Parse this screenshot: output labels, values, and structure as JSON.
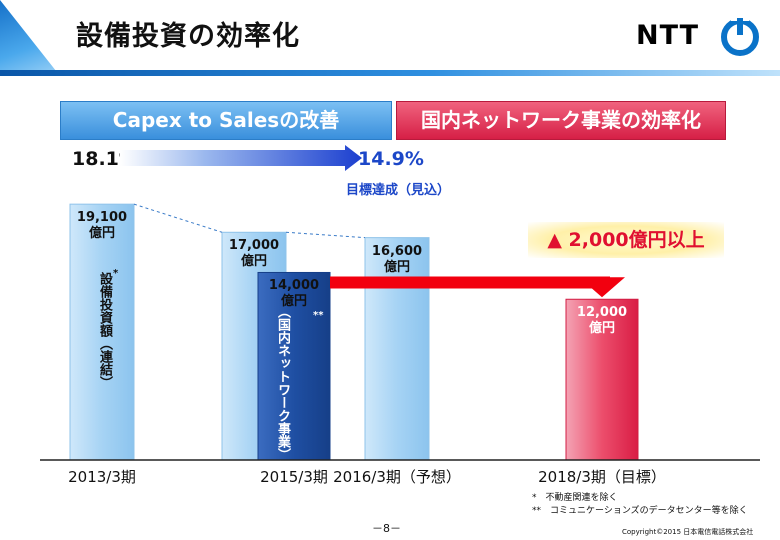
{
  "title": "設備投資の効率化",
  "logo": {
    "text": "NTT",
    "brand_color": "#0a72c8"
  },
  "banners": {
    "left": "Capex to Salesの改善",
    "right": "国内ネットワーク事業の効率化"
  },
  "capex_to_sales": {
    "start": "18.1%",
    "end": "14.9%",
    "note": "目標達成（見込）"
  },
  "reduction_label": "▲ 2,000億円以上",
  "series_labels": {
    "consolidated": "設備投資額（連結）",
    "consolidated_marker": "*",
    "domestic": "（国内ネットワーク事業）設備投資額",
    "domestic_marker": "**"
  },
  "notes": [
    "*　不動産関連を除く",
    "**　コミュニケーションズのデータセンター等を除く"
  ],
  "page_number": "－8－",
  "copyright": "Copyright©2015 日本電信電話株式会社",
  "chart_data": {
    "type": "bar",
    "categories": [
      "2013/3期",
      "2015/3期",
      "2016/3期（予想）",
      "2018/3期（目標）"
    ],
    "unit": "億円",
    "series": [
      {
        "name": "設備投資額（連結）",
        "values": [
          19100,
          17000,
          16600,
          null
        ],
        "color": "#a9d6f5"
      },
      {
        "name": "（国内ネットワーク事業）設備投資額",
        "values": [
          null,
          14000,
          null,
          12000
        ],
        "color": "#1f4fa3",
        "target_color": "#e8234a"
      }
    ],
    "value_labels": [
      "19,100\n億円",
      "17,000\n億円",
      "16,600\n億円",
      "14,000\n億円",
      "12,000\n億円"
    ],
    "ylim": [
      0,
      21500
    ]
  }
}
